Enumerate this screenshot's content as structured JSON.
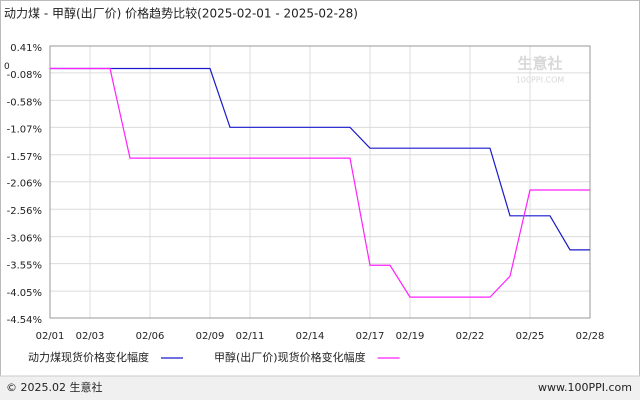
{
  "chart_data": {
    "type": "line",
    "title": "动力煤 - 甲醇(出厂价) 价格趋势比较(2025-02-01 - 2025-02-28)",
    "categories": [
      "02/01",
      null,
      "02/03",
      null,
      null,
      "02/06",
      null,
      null,
      "02/09",
      null,
      "02/11",
      null,
      null,
      "02/14",
      null,
      null,
      "02/17",
      null,
      "02/19",
      null,
      null,
      "02/22",
      null,
      null,
      "02/25",
      null,
      null,
      "02/28"
    ],
    "series": [
      {
        "name": "动力煤现货价格变化幅度",
        "color": "#1a1acc",
        "values": [
          0,
          0,
          0,
          0,
          0,
          0,
          0,
          0,
          0,
          -1.07,
          -1.07,
          -1.07,
          -1.07,
          -1.07,
          -1.07,
          -1.07,
          -1.45,
          -1.45,
          -1.45,
          -1.45,
          -1.45,
          -1.45,
          -1.45,
          -2.68,
          -2.68,
          -2.68,
          -3.3,
          -3.3
        ]
      },
      {
        "name": "甲醇(出厂价)现货价格变化幅度",
        "color": "#ff22ff",
        "values": [
          0,
          0,
          0,
          0,
          -1.63,
          -1.63,
          -1.63,
          -1.63,
          -1.63,
          -1.63,
          -1.63,
          -1.63,
          -1.63,
          -1.63,
          -1.63,
          -1.63,
          -3.58,
          -3.58,
          -4.16,
          -4.16,
          -4.16,
          -4.16,
          -4.16,
          -3.78,
          -2.21,
          -2.21,
          -2.21,
          -2.21
        ]
      }
    ],
    "ylim": [
      -4.54,
      0.41
    ],
    "yticks": [
      {
        "value": 0.41,
        "label": "0.41%"
      },
      {
        "value": -0.08,
        "label": "-0.08%"
      },
      {
        "value": -0.58,
        "label": "-0.58%"
      },
      {
        "value": -1.07,
        "label": "-1.07%"
      },
      {
        "value": -1.57,
        "label": "-1.57%"
      },
      {
        "value": -2.06,
        "label": "-2.06%"
      },
      {
        "value": -2.56,
        "label": "-2.56%"
      },
      {
        "value": -3.06,
        "label": "-3.06%"
      },
      {
        "value": -3.55,
        "label": "-3.55%"
      },
      {
        "value": -4.05,
        "label": "-4.05%"
      },
      {
        "value": -4.54,
        "label": "-4.54%"
      }
    ],
    "zero_label": 0,
    "grid": true,
    "watermark": [
      "生意社",
      "100PPI.COM"
    ],
    "footer": {
      "left": "© 2025.02 生意社",
      "right": "www.100PPI.com"
    }
  }
}
